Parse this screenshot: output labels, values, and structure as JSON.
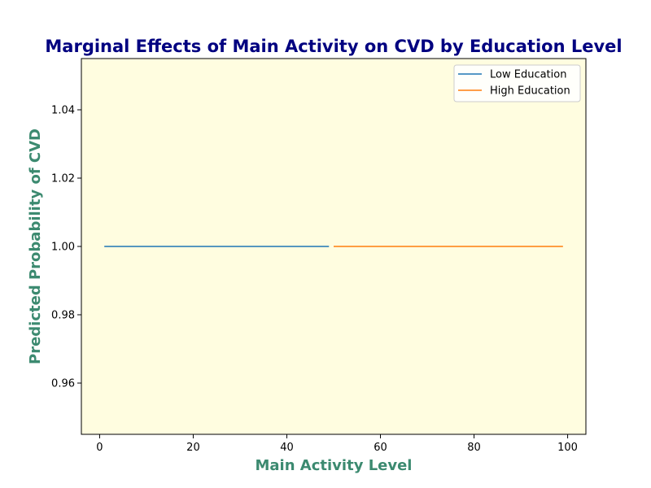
{
  "chart_data": {
    "type": "line",
    "title": "Marginal Effects of Main Activity on CVD by Education Level",
    "xlabel": "Main Activity Level",
    "ylabel": "Predicted Probability of CVD",
    "xlim": [
      -3.9,
      103.9
    ],
    "ylim": [
      0.945,
      1.055
    ],
    "xticks": [
      0,
      20,
      40,
      60,
      80,
      100
    ],
    "yticks": [
      0.96,
      0.98,
      1.0,
      1.02,
      1.04
    ],
    "xtick_labels": [
      "0",
      "20",
      "40",
      "60",
      "80",
      "100"
    ],
    "ytick_labels": [
      "0.96",
      "0.98",
      "1.00",
      "1.02",
      "1.04"
    ],
    "grid": false,
    "legend_position": "top-right",
    "series": [
      {
        "name": "Low Education",
        "color": "#1f77b4",
        "x": [
          1,
          49
        ],
        "y": [
          1.0,
          1.0
        ]
      },
      {
        "name": "High Education",
        "color": "#ff7f0e",
        "x": [
          50,
          99
        ],
        "y": [
          1.0,
          1.0
        ]
      }
    ],
    "colors": {
      "title": "#000080",
      "axis_label": "#3c8a70",
      "plot_background": "#fffde0"
    }
  }
}
